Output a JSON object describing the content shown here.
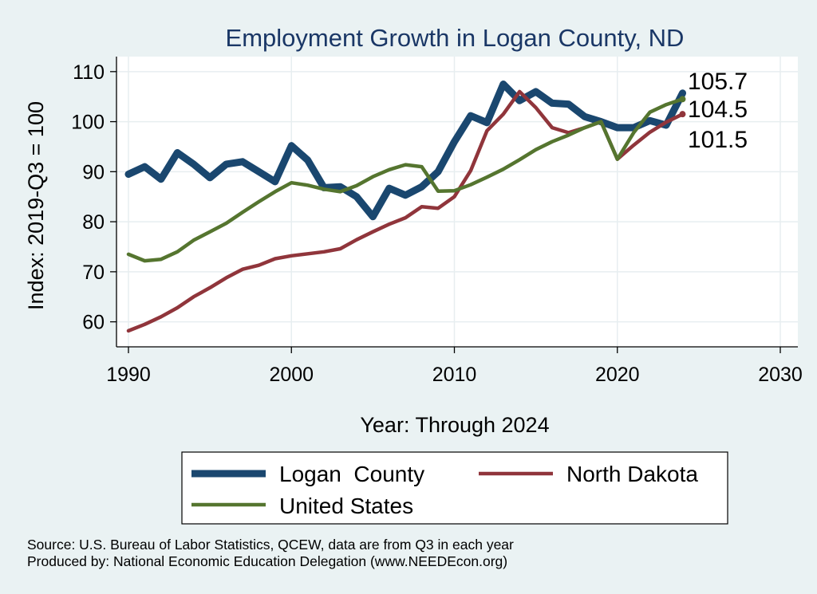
{
  "chart_data": {
    "type": "line",
    "title": "Employment Growth in Logan County, ND",
    "xlabel": "Year: Through 2024",
    "ylabel": "Index: 2019-Q3 = 100",
    "xlim": [
      1990,
      2030
    ],
    "ylim": [
      55,
      113
    ],
    "x_ticks": [
      1990,
      2000,
      2010,
      2020,
      2030
    ],
    "y_ticks": [
      60,
      70,
      80,
      90,
      100,
      110
    ],
    "grid": true,
    "legend_position": "bottom",
    "x": [
      1990,
      1991,
      1992,
      1993,
      1994,
      1995,
      1996,
      1997,
      1998,
      1999,
      2000,
      2001,
      2002,
      2003,
      2004,
      2005,
      2006,
      2007,
      2008,
      2009,
      2010,
      2011,
      2012,
      2013,
      2014,
      2015,
      2016,
      2017,
      2018,
      2019,
      2020,
      2021,
      2022,
      2023,
      2024
    ],
    "series": [
      {
        "name": "Logan  County",
        "color": "#1a476f",
        "values": [
          89.5,
          91.0,
          88.5,
          93.8,
          91.5,
          88.8,
          91.5,
          92.0,
          90.0,
          88.0,
          95.2,
          92.3,
          86.8,
          87.0,
          85.0,
          81.0,
          86.7,
          85.3,
          87.0,
          90.0,
          96.0,
          101.2,
          99.8,
          107.5,
          104.2,
          106.0,
          103.7,
          103.5,
          101.0,
          100.0,
          98.8,
          98.8,
          100.2,
          99.3,
          105.7
        ],
        "end_label": "105.7"
      },
      {
        "name": "North Dakota",
        "color": "#90353b",
        "values": [
          58.2,
          59.5,
          61.0,
          62.8,
          65.0,
          66.8,
          68.8,
          70.5,
          71.3,
          72.6,
          73.2,
          73.6,
          74.0,
          74.6,
          76.4,
          78.0,
          79.5,
          80.8,
          83.0,
          82.7,
          85.0,
          90.2,
          98.2,
          101.5,
          106.0,
          102.8,
          98.8,
          97.8,
          98.8,
          100.0,
          92.5,
          95.3,
          97.9,
          99.9,
          101.5
        ],
        "end_label": "101.5"
      },
      {
        "name": "United States",
        "color": "#55752f",
        "values": [
          73.5,
          72.2,
          72.5,
          74.0,
          76.3,
          78.0,
          79.7,
          81.9,
          84.0,
          86.0,
          87.8,
          87.3,
          86.5,
          86.0,
          87.2,
          89.0,
          90.4,
          91.4,
          91.0,
          86.1,
          86.2,
          87.4,
          88.9,
          90.5,
          92.4,
          94.4,
          96.0,
          97.3,
          98.8,
          100.0,
          92.5,
          97.8,
          101.9,
          103.4,
          104.5
        ],
        "end_label": "104.5"
      }
    ]
  },
  "source_line_1": "Source: U.S. Bureau of Labor Statistics, QCEW, data are from Q3 in each year",
  "source_line_2": "Produced by: National Economic Education Delegation (www.NEEDEcon.org)"
}
